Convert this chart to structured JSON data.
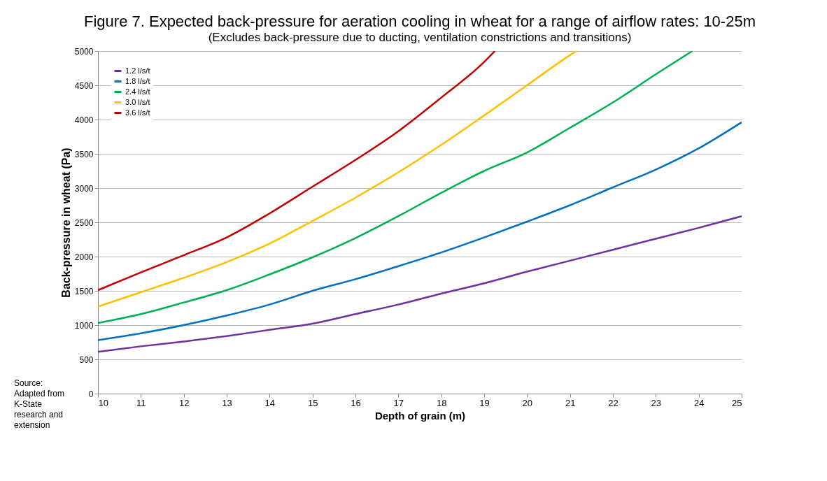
{
  "chart_data": {
    "type": "line",
    "title": "Figure 7. Expected back-pressure for aeration cooling in wheat for a range of airflow rates: 10-25m",
    "subtitle": "(Excludes back-pressure due to ducting, ventilation constrictions and transitions)",
    "xlabel": "Depth of grain (m)",
    "ylabel": "Back-pressure in wheat  (Pa)",
    "xlim": [
      10,
      25
    ],
    "xticks": [
      10,
      11,
      12,
      13,
      14,
      15,
      16,
      17,
      18,
      19,
      20,
      21,
      22,
      23,
      24,
      25
    ],
    "ylim": [
      0,
      5000
    ],
    "yticks": [
      0,
      500,
      1000,
      1500,
      2000,
      2500,
      3000,
      3500,
      4000,
      4500,
      5000
    ],
    "grid": "y",
    "legend": "top left",
    "marker": "none",
    "line_style": "solid",
    "annotations": [
      "Source: Adapted from K-State research and extension"
    ],
    "series": [
      {
        "name": "1.2 l/s/t",
        "color": "#7030a0",
        "x": [
          10,
          11,
          12,
          13,
          14,
          15,
          16,
          17,
          18,
          19,
          20,
          21,
          22,
          23,
          24,
          25
        ],
        "values": [
          610,
          690,
          760,
          840,
          930,
          1020,
          1160,
          1300,
          1460,
          1610,
          1780,
          1940,
          2100,
          2260,
          2420,
          2590
        ]
      },
      {
        "name": "1.8 l/s/t",
        "color": "#0070c0",
        "x": [
          10,
          11,
          12,
          13,
          14,
          15,
          16,
          17,
          18,
          19,
          20,
          21,
          22,
          23,
          24,
          25
        ],
        "values": [
          780,
          880,
          1000,
          1140,
          1300,
          1500,
          1670,
          1860,
          2060,
          2280,
          2510,
          2750,
          3010,
          3270,
          3580,
          3960
        ]
      },
      {
        "name": "2.4 l/s/t",
        "color": "#00b050",
        "x": [
          10,
          11,
          12,
          13,
          14,
          15,
          16,
          17,
          18,
          19,
          20,
          21,
          22,
          23,
          23.85
        ],
        "values": [
          1030,
          1160,
          1330,
          1510,
          1740,
          1990,
          2270,
          2590,
          2930,
          3250,
          3520,
          3880,
          4250,
          4660,
          5000
        ]
      },
      {
        "name": "3.0 l/s/t",
        "color": "#ffc000",
        "x": [
          10,
          11,
          12,
          13,
          14,
          15,
          16,
          17,
          18,
          19,
          20,
          21,
          21.15
        ],
        "values": [
          1270,
          1480,
          1690,
          1920,
          2190,
          2520,
          2860,
          3230,
          3630,
          4060,
          4500,
          4940,
          5000
        ]
      },
      {
        "name": "3.6 l/s/t",
        "color": "#c00000",
        "x": [
          10,
          11,
          12,
          13,
          14,
          15,
          16,
          17,
          18,
          19,
          19.25
        ],
        "values": [
          1510,
          1770,
          2020,
          2280,
          2630,
          3020,
          3410,
          3830,
          4320,
          4840,
          5000
        ]
      }
    ]
  }
}
